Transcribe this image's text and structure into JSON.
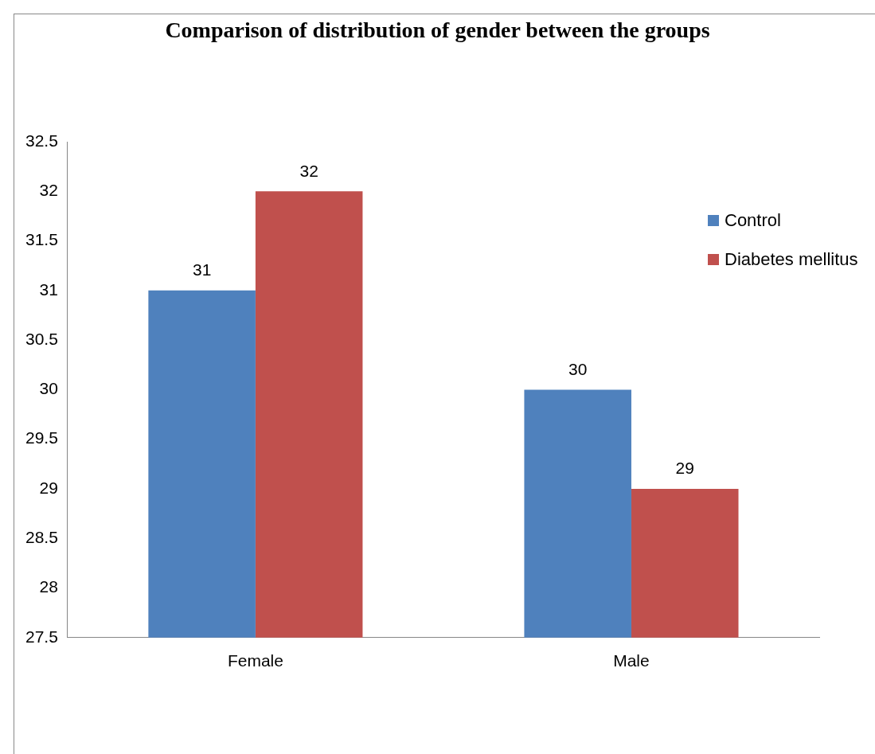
{
  "chart_data": {
    "type": "bar",
    "title": "Comparison of distribution of gender between the groups",
    "categories": [
      "Female",
      "Male"
    ],
    "series": [
      {
        "name": "Control",
        "color": "#4f81bd",
        "values": [
          31,
          30
        ]
      },
      {
        "name": "Diabetes mellitus",
        "color": "#c0504d",
        "values": [
          32,
          29
        ]
      }
    ],
    "ylim": [
      27.5,
      32.5
    ],
    "yticks": [
      27.5,
      28,
      28.5,
      29,
      29.5,
      30,
      30.5,
      31,
      31.5,
      32,
      32.5
    ],
    "grid": false,
    "legend": "right",
    "data_labels": true
  }
}
